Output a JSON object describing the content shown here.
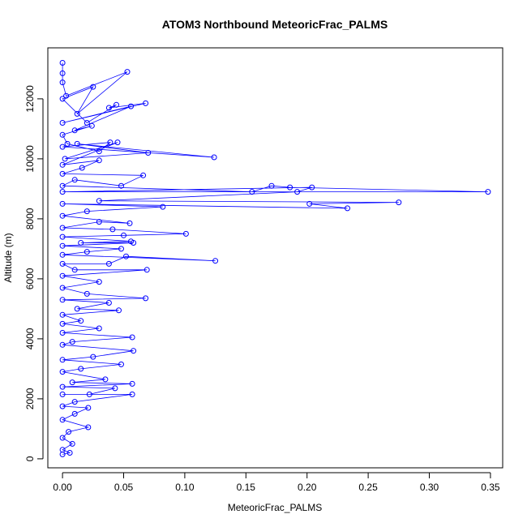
{
  "chart_data": {
    "type": "scatter",
    "title": "ATOM3 Northbound MeteoricFrac_PALMS",
    "xlabel": "MeteoricFrac_PALMS",
    "ylabel": "Altitude (m)",
    "xlim": [
      -0.012,
      0.36
    ],
    "ylim": [
      -300,
      13700
    ],
    "x_ticks": [
      0.0,
      0.05,
      0.1,
      0.15,
      0.2,
      0.25,
      0.3,
      0.35
    ],
    "x_tick_labels": [
      "0.00",
      "0.05",
      "0.10",
      "0.15",
      "0.20",
      "0.25",
      "0.30",
      "0.35"
    ],
    "y_ticks": [
      0,
      2000,
      4000,
      6000,
      8000,
      10000,
      12000
    ],
    "y_tick_labels": [
      "0",
      "2000",
      "4000",
      "6000",
      "8000",
      "10000",
      "12000"
    ],
    "grid": false,
    "series_color": "#0000ff",
    "connected": true,
    "points": [
      [
        0.0,
        13200
      ],
      [
        0.0,
        12850
      ],
      [
        0.0,
        12550
      ],
      [
        0.003,
        12100
      ],
      [
        0.053,
        12900
      ],
      [
        0.012,
        11500
      ],
      [
        0.025,
        12400
      ],
      [
        0.0,
        12000
      ],
      [
        0.02,
        11200
      ],
      [
        0.044,
        11800
      ],
      [
        0.038,
        11700
      ],
      [
        0.068,
        11850
      ],
      [
        0.0,
        11200
      ],
      [
        0.056,
        11750
      ],
      [
        0.01,
        10950
      ],
      [
        0.024,
        11100
      ],
      [
        0.0,
        10800
      ],
      [
        0.004,
        10500
      ],
      [
        0.03,
        10250
      ],
      [
        0.039,
        10550
      ],
      [
        0.0,
        10400
      ],
      [
        0.124,
        10050
      ],
      [
        0.012,
        10500
      ],
      [
        0.07,
        10200
      ],
      [
        0.002,
        10000
      ],
      [
        0.045,
        10550
      ],
      [
        0.0,
        9800
      ],
      [
        0.03,
        9950
      ],
      [
        0.016,
        9700
      ],
      [
        0.0,
        9500
      ],
      [
        0.066,
        9450
      ],
      [
        0.048,
        9100
      ],
      [
        0.01,
        9300
      ],
      [
        0.0,
        9100
      ],
      [
        0.155,
        8900
      ],
      [
        0.171,
        9100
      ],
      [
        0.186,
        9050
      ],
      [
        0.348,
        8900
      ],
      [
        0.0,
        8900
      ],
      [
        0.204,
        9050
      ],
      [
        0.192,
        8900
      ],
      [
        0.03,
        8600
      ],
      [
        0.275,
        8550
      ],
      [
        0.202,
        8500
      ],
      [
        0.233,
        8350
      ],
      [
        0.0,
        8500
      ],
      [
        0.082,
        8400
      ],
      [
        0.02,
        8250
      ],
      [
        0.0,
        8100
      ],
      [
        0.055,
        7850
      ],
      [
        0.03,
        7900
      ],
      [
        0.0,
        7700
      ],
      [
        0.041,
        7650
      ],
      [
        0.101,
        7500
      ],
      [
        0.05,
        7450
      ],
      [
        0.0,
        7400
      ],
      [
        0.056,
        7250
      ],
      [
        0.015,
        7200
      ],
      [
        0.058,
        7200
      ],
      [
        0.0,
        7100
      ],
      [
        0.048,
        7000
      ],
      [
        0.02,
        6900
      ],
      [
        0.0,
        6800
      ],
      [
        0.125,
        6600
      ],
      [
        0.052,
        6750
      ],
      [
        0.038,
        6500
      ],
      [
        0.0,
        6500
      ],
      [
        0.01,
        6300
      ],
      [
        0.069,
        6300
      ],
      [
        0.0,
        6100
      ],
      [
        0.03,
        5900
      ],
      [
        0.0,
        5700
      ],
      [
        0.02,
        5500
      ],
      [
        0.068,
        5350
      ],
      [
        0.0,
        5300
      ],
      [
        0.038,
        5200
      ],
      [
        0.012,
        5000
      ],
      [
        0.046,
        4950
      ],
      [
        0.0,
        4800
      ],
      [
        0.015,
        4600
      ],
      [
        0.0,
        4500
      ],
      [
        0.03,
        4350
      ],
      [
        0.0,
        4200
      ],
      [
        0.057,
        4050
      ],
      [
        0.008,
        3900
      ],
      [
        0.0,
        3800
      ],
      [
        0.058,
        3600
      ],
      [
        0.025,
        3400
      ],
      [
        0.0,
        3300
      ],
      [
        0.048,
        3150
      ],
      [
        0.015,
        3000
      ],
      [
        0.0,
        2900
      ],
      [
        0.035,
        2650
      ],
      [
        0.008,
        2550
      ],
      [
        0.057,
        2500
      ],
      [
        0.0,
        2400
      ],
      [
        0.043,
        2350
      ],
      [
        0.022,
        2150
      ],
      [
        0.0,
        2150
      ],
      [
        0.057,
        2150
      ],
      [
        0.01,
        1900
      ],
      [
        0.0,
        1750
      ],
      [
        0.021,
        1700
      ],
      [
        0.01,
        1500
      ],
      [
        0.0,
        1300
      ],
      [
        0.021,
        1050
      ],
      [
        0.005,
        900
      ],
      [
        0.0,
        700
      ],
      [
        0.008,
        500
      ],
      [
        0.0,
        300
      ],
      [
        0.006,
        200
      ],
      [
        0.0,
        150
      ]
    ]
  }
}
